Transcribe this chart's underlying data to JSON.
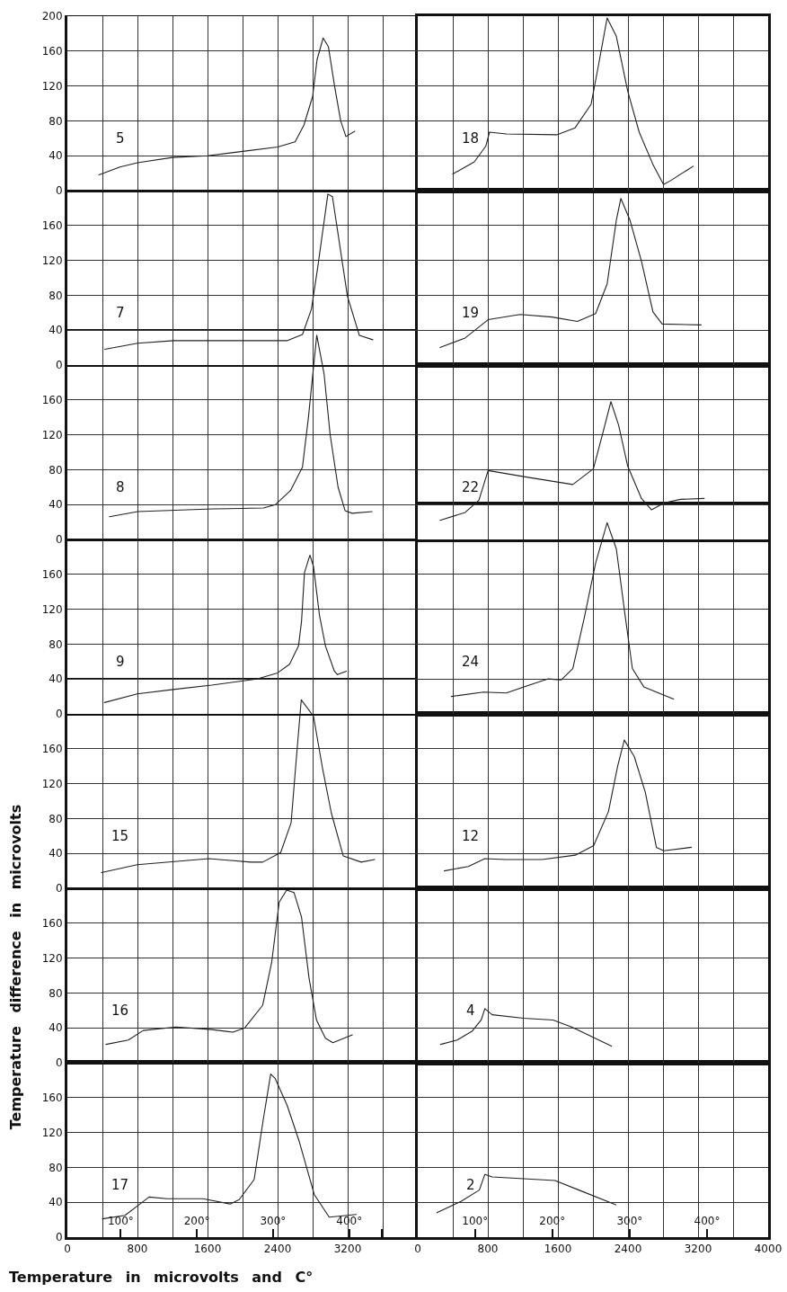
{
  "chart_data": [
    {
      "type": "line",
      "x": [
        360,
        600,
        800,
        1200,
        1600,
        2000,
        2400,
        2600,
        2700,
        2800,
        2850,
        2920,
        2980,
        3050,
        3120,
        3180,
        3280
      ],
      "values": [
        18,
        27,
        32,
        38,
        40,
        45,
        50,
        56,
        75,
        108,
        150,
        175,
        165,
        120,
        80,
        62,
        68
      ],
      "color": "#222222",
      "xlim": [
        0,
        4000
      ],
      "ylim": [
        0,
        200
      ],
      "xticks": [
        0,
        {
          "value": 400,
          "label": null
        },
        800,
        {
          "value": 1200,
          "label": null
        },
        1600,
        {
          "value": 2000,
          "label": null
        },
        2400,
        {
          "value": 2800,
          "label": null
        },
        3200,
        {
          "value": 3600,
          "label": null
        }
      ],
      "yticks": [
        0,
        40,
        80,
        120,
        160,
        200
      ],
      "grid": true,
      "tick_labels": "y",
      "annotations": [
        "5"
      ]
    },
    {
      "type": "line",
      "x": [
        400,
        646,
        777,
        819,
        1012,
        1587,
        1796,
        1979,
        2058,
        2162,
        2267,
        2397,
        2528,
        2685,
        2806,
        2895,
        3145
      ],
      "values": [
        19,
        33,
        51,
        67,
        65,
        64,
        72,
        99,
        141,
        198,
        177,
        114,
        67,
        30,
        7,
        12,
        28
      ],
      "color": "#222222",
      "xlim": [
        0,
        4000
      ],
      "ylim": [
        0,
        200
      ],
      "xticks": [
        0,
        {
          "value": 400,
          "label": null
        },
        800,
        {
          "value": 1200,
          "label": null
        },
        1600,
        {
          "value": 2000,
          "label": null
        },
        2400,
        {
          "value": 2800,
          "label": null
        },
        3200,
        {
          "value": 3600,
          "label": null
        },
        4000
      ],
      "yticks": [
        0,
        40,
        80,
        120,
        160,
        200
      ],
      "grid": true,
      "tick_labels": false,
      "annotations": [
        "18"
      ]
    },
    {
      "type": "line",
      "x": [
        427,
        803,
        1214,
        2000,
        2513,
        2684,
        2786,
        2855,
        2974,
        3026,
        3197,
        3333,
        3487
      ],
      "values": [
        18,
        25,
        28,
        28,
        28,
        35,
        64,
        110,
        196,
        193,
        79,
        34,
        29
      ],
      "color": "#222222",
      "xlim": [
        0,
        4000
      ],
      "ylim": [
        0,
        200
      ],
      "xticks": [
        0,
        {
          "value": 400,
          "label": null
        },
        800,
        {
          "value": 1200,
          "label": null
        },
        1600,
        {
          "value": 2000,
          "label": null
        },
        2400,
        {
          "value": 2800,
          "label": null
        },
        3200,
        {
          "value": 3600,
          "label": null
        }
      ],
      "yticks": [
        0,
        40,
        80,
        120,
        160
      ],
      "grid": true,
      "tick_labels": "y",
      "annotations": [
        "7"
      ]
    },
    {
      "type": "line",
      "x": [
        254,
        541,
        803,
        1168,
        1534,
        1822,
        2031,
        2162,
        2267,
        2319,
        2423,
        2554,
        2685,
        2790,
        3234
      ],
      "values": [
        20,
        31,
        52,
        58,
        55,
        50,
        59,
        93,
        166,
        191,
        166,
        119,
        61,
        47,
        46
      ],
      "color": "#222222",
      "xlim": [
        0,
        4000
      ],
      "ylim": [
        0,
        200
      ],
      "xticks": [
        0,
        {
          "value": 400,
          "label": null
        },
        800,
        {
          "value": 1200,
          "label": null
        },
        1600,
        {
          "value": 2000,
          "label": null
        },
        2400,
        {
          "value": 2800,
          "label": null
        },
        3200,
        {
          "value": 3600,
          "label": null
        },
        4000
      ],
      "yticks": [
        0,
        40,
        80,
        120,
        160
      ],
      "grid": true,
      "tick_labels": false,
      "annotations": [
        "19"
      ]
    },
    {
      "type": "line",
      "x": [
        479,
        803,
        1658,
        2239,
        2376,
        2547,
        2684,
        2752,
        2847,
        2930,
        3000,
        3090,
        3170,
        3250,
        3480
      ],
      "values": [
        26,
        32,
        35,
        36,
        40,
        56,
        83,
        140,
        234,
        190,
        120,
        60,
        33,
        30,
        32
      ],
      "color": "#222222",
      "xlim": [
        0,
        4000
      ],
      "ylim": [
        0,
        240
      ],
      "xticks": [
        0,
        {
          "value": 400,
          "label": null
        },
        800,
        {
          "value": 1200,
          "label": null
        },
        1600,
        {
          "value": 2000,
          "label": null
        },
        2400,
        {
          "value": 2800,
          "label": null
        },
        3200,
        {
          "value": 3600,
          "label": null
        }
      ],
      "yticks": [
        0,
        40,
        80,
        120,
        160
      ],
      "grid": true,
      "tick_labels": "y",
      "annotations": [
        "8"
      ]
    },
    {
      "type": "line",
      "x": [
        254,
        541,
        698,
        803,
        1273,
        1770,
        2005,
        2110,
        2205,
        2293,
        2397,
        2554,
        2669,
        2816,
        2999,
        3270
      ],
      "values": [
        22,
        31,
        45,
        79,
        71,
        63,
        81,
        121,
        158,
        131,
        84,
        47,
        34,
        42,
        46,
        47
      ],
      "color": "#222222",
      "xlim": [
        0,
        4000
      ],
      "ylim": [
        0,
        200
      ],
      "xticks": [
        0,
        {
          "value": 400,
          "label": null
        },
        800,
        {
          "value": 1200,
          "label": null
        },
        1600,
        {
          "value": 2000,
          "label": null
        },
        2400,
        {
          "value": 2800,
          "label": null
        },
        3200,
        {
          "value": 3600,
          "label": null
        },
        4000
      ],
      "yticks": [
        0,
        40,
        80,
        120,
        160
      ],
      "grid": true,
      "tick_labels": false,
      "annotations": [
        "22"
      ]
    },
    {
      "type": "line",
      "x": [
        423,
        798,
        1207,
        1650,
        2162,
        2400,
        2537,
        2639,
        2673,
        2707,
        2769,
        2810,
        2878,
        2946,
        3048,
        3083,
        3185
      ],
      "values": [
        13,
        23,
        28,
        33,
        40,
        47,
        57,
        78,
        106,
        162,
        182,
        169,
        113,
        78,
        49,
        45,
        49
      ],
      "color": "#222222",
      "xlim": [
        0,
        4000
      ],
      "ylim": [
        0,
        200
      ],
      "xticks": [
        0,
        {
          "value": 400,
          "label": null
        },
        800,
        {
          "value": 1200,
          "label": null
        },
        1600,
        {
          "value": 2000,
          "label": null
        },
        2400,
        {
          "value": 2800,
          "label": null
        },
        3200,
        {
          "value": 3600,
          "label": null
        }
      ],
      "yticks": [
        0,
        40,
        80,
        120,
        160
      ],
      "grid": true,
      "tick_labels": "y",
      "annotations": [
        "9"
      ]
    },
    {
      "type": "line",
      "x": [
        384,
        751,
        1012,
        1273,
        1482,
        1639,
        1770,
        1901,
        2031,
        2162,
        2267,
        2371,
        2450,
        2580,
        2920
      ],
      "values": [
        20,
        25,
        24,
        33,
        40,
        39,
        52,
        110,
        173,
        219,
        189,
        110,
        52,
        31,
        17
      ],
      "color": "#222222",
      "xlim": [
        0,
        4000
      ],
      "ylim": [
        0,
        240
      ],
      "xticks": [
        0,
        {
          "value": 400,
          "label": null
        },
        800,
        {
          "value": 1200,
          "label": null
        },
        1600,
        {
          "value": 2000,
          "label": null
        },
        2400,
        {
          "value": 2800,
          "label": null
        },
        3200,
        {
          "value": 3600,
          "label": null
        },
        4000
      ],
      "yticks": [
        0,
        40,
        80,
        120,
        160
      ],
      "grid": true,
      "tick_labels": false,
      "annotations": [
        "24"
      ]
    },
    {
      "type": "line",
      "x": [
        389,
        798,
        1617,
        2094,
        2230,
        2435,
        2554,
        2605,
        2670,
        2810,
        2912,
        3014,
        3150,
        3355,
        3508
      ],
      "values": [
        18,
        27,
        34,
        30,
        30,
        41,
        75,
        138,
        216,
        197,
        138,
        86,
        37,
        30,
        33
      ],
      "color": "#222222",
      "xlim": [
        0,
        4000
      ],
      "ylim": [
        0,
        240
      ],
      "xticks": [
        0,
        {
          "value": 400,
          "label": null
        },
        800,
        {
          "value": 1200,
          "label": null
        },
        1600,
        {
          "value": 2000,
          "label": null
        },
        2400,
        {
          "value": 2800,
          "label": null
        },
        3200,
        {
          "value": 3600,
          "label": null
        }
      ],
      "yticks": [
        0,
        40,
        80,
        120,
        160
      ],
      "grid": true,
      "tick_labels": "y",
      "annotations": [
        "15"
      ]
    },
    {
      "type": "line",
      "x": [
        303,
        577,
        766,
        998,
        1419,
        1798,
        2008,
        2177,
        2282,
        2358,
        2472,
        2598,
        2724,
        2808,
        3124
      ],
      "values": [
        20,
        25,
        34,
        33,
        33,
        38,
        49,
        88,
        140,
        170,
        151,
        110,
        47,
        43,
        47
      ],
      "color": "#222222",
      "xlim": [
        0,
        4000
      ],
      "ylim": [
        0,
        200
      ],
      "xticks": [
        0,
        {
          "value": 400,
          "label": null
        },
        800,
        {
          "value": 1200,
          "label": null
        },
        1600,
        {
          "value": 2000,
          "label": null
        },
        2400,
        {
          "value": 2800,
          "label": null
        },
        3200,
        {
          "value": 3600,
          "label": null
        },
        4000
      ],
      "yticks": [
        0,
        40,
        80,
        120,
        160
      ],
      "grid": true,
      "tick_labels": false,
      "annotations": [
        "12"
      ]
    },
    {
      "type": "line",
      "x": [
        440,
        696,
        866,
        1241,
        1650,
        1889,
        2026,
        2230,
        2332,
        2418,
        2503,
        2588,
        2673,
        2759,
        2844,
        2946,
        3031,
        3253
      ],
      "values": [
        21,
        26,
        37,
        41,
        38,
        35,
        40,
        66,
        115,
        184,
        198,
        195,
        167,
        97,
        49,
        28,
        23,
        32
      ],
      "color": "#222222",
      "xlim": [
        0,
        4000
      ],
      "ylim": [
        0,
        200
      ],
      "xticks": [
        0,
        {
          "value": 400,
          "label": null
        },
        800,
        {
          "value": 1200,
          "label": null
        },
        1600,
        {
          "value": 2000,
          "label": null
        },
        2400,
        {
          "value": 2800,
          "label": null
        },
        3200,
        {
          "value": 3600,
          "label": null
        }
      ],
      "yticks": [
        0,
        40,
        80,
        120,
        160
      ],
      "grid": true,
      "tick_labels": "y",
      "ylabel": "Temperature difference in microvolts",
      "annotations": [
        "16"
      ]
    },
    {
      "type": "line",
      "x": [
        261,
        450,
        619,
        724,
        766,
        850,
        1208,
        1545,
        1756,
        1966,
        2211
      ],
      "values": [
        21,
        26,
        36,
        49,
        62,
        55,
        51,
        49,
        41,
        31,
        19
      ],
      "color": "#222222",
      "xlim": [
        0,
        4000
      ],
      "ylim": [
        0,
        200
      ],
      "xticks": [
        0,
        {
          "value": 400,
          "label": null
        },
        800,
        {
          "value": 1200,
          "label": null
        },
        1600,
        {
          "value": 2000,
          "label": null
        },
        2400,
        {
          "value": 2800,
          "label": null
        },
        3200,
        {
          "value": 3600,
          "label": null
        },
        4000
      ],
      "yticks": [
        0,
        40,
        80,
        120,
        160
      ],
      "grid": true,
      "tick_labels": false,
      "annotations": [
        "4"
      ]
    },
    {
      "type": "line",
      "x": [
        401,
        658,
        829,
        932,
        1138,
        1549,
        1858,
        1961,
        2132,
        2235,
        2321,
        2372,
        2509,
        2646,
        2818,
        2989,
        3297
      ],
      "values": [
        21,
        25,
        38,
        46,
        44,
        44,
        38,
        43,
        66,
        134,
        187,
        182,
        151,
        110,
        49,
        23,
        26
      ],
      "color": "#222222",
      "xlim": [
        0,
        4000
      ],
      "ylim": [
        0,
        200
      ],
      "xticks": [
        0,
        {
          "value": 400,
          "label": null
        },
        800,
        {
          "value": 1200,
          "label": null
        },
        1600,
        {
          "value": 2000,
          "label": null
        },
        2400,
        {
          "value": 2800,
          "label": null
        },
        3200,
        {
          "value": 3600,
          "label": null
        }
      ],
      "yticks": [
        0,
        40,
        80,
        120,
        160
      ],
      "grid": true,
      "x2lim": [
        30,
        490
      ],
      "x2ticks": [
        {
          "value": 100,
          "label": "100°"
        },
        {
          "value": 200,
          "label": "200°"
        },
        {
          "value": 300,
          "label": "300°"
        },
        {
          "value": 400,
          "label": "400°"
        },
        {
          "value": 443,
          "label": null
        }
      ],
      "xlabel": "Temperature in microvolts and C°",
      "annotations": [
        "17"
      ]
    },
    {
      "type": "line",
      "x": [
        219,
        493,
        703,
        766,
        850,
        1208,
        1566,
        1840,
        2261
      ],
      "values": [
        28,
        41,
        54,
        72,
        69,
        67,
        65,
        54,
        37
      ],
      "color": "#222222",
      "xlim": [
        0,
        4000
      ],
      "ylim": [
        0,
        200
      ],
      "xticks": [
        0,
        {
          "value": 400,
          "label": null
        },
        800,
        {
          "value": 1200,
          "label": null
        },
        1600,
        {
          "value": 2000,
          "label": null
        },
        2400,
        {
          "value": 2800,
          "label": null
        },
        3200,
        {
          "value": 3600,
          "label": null
        },
        4000
      ],
      "yticks": [
        0,
        40,
        80,
        120,
        160
      ],
      "grid": true,
      "tick_labels": "x",
      "x2lim": [
        26,
        479
      ],
      "x2ticks": [
        {
          "value": 100,
          "label": "100°"
        },
        {
          "value": 200,
          "label": "200°"
        },
        {
          "value": 300,
          "label": "300°"
        },
        {
          "value": 400,
          "label": "400°"
        }
      ],
      "annotations": [
        "2"
      ]
    }
  ]
}
